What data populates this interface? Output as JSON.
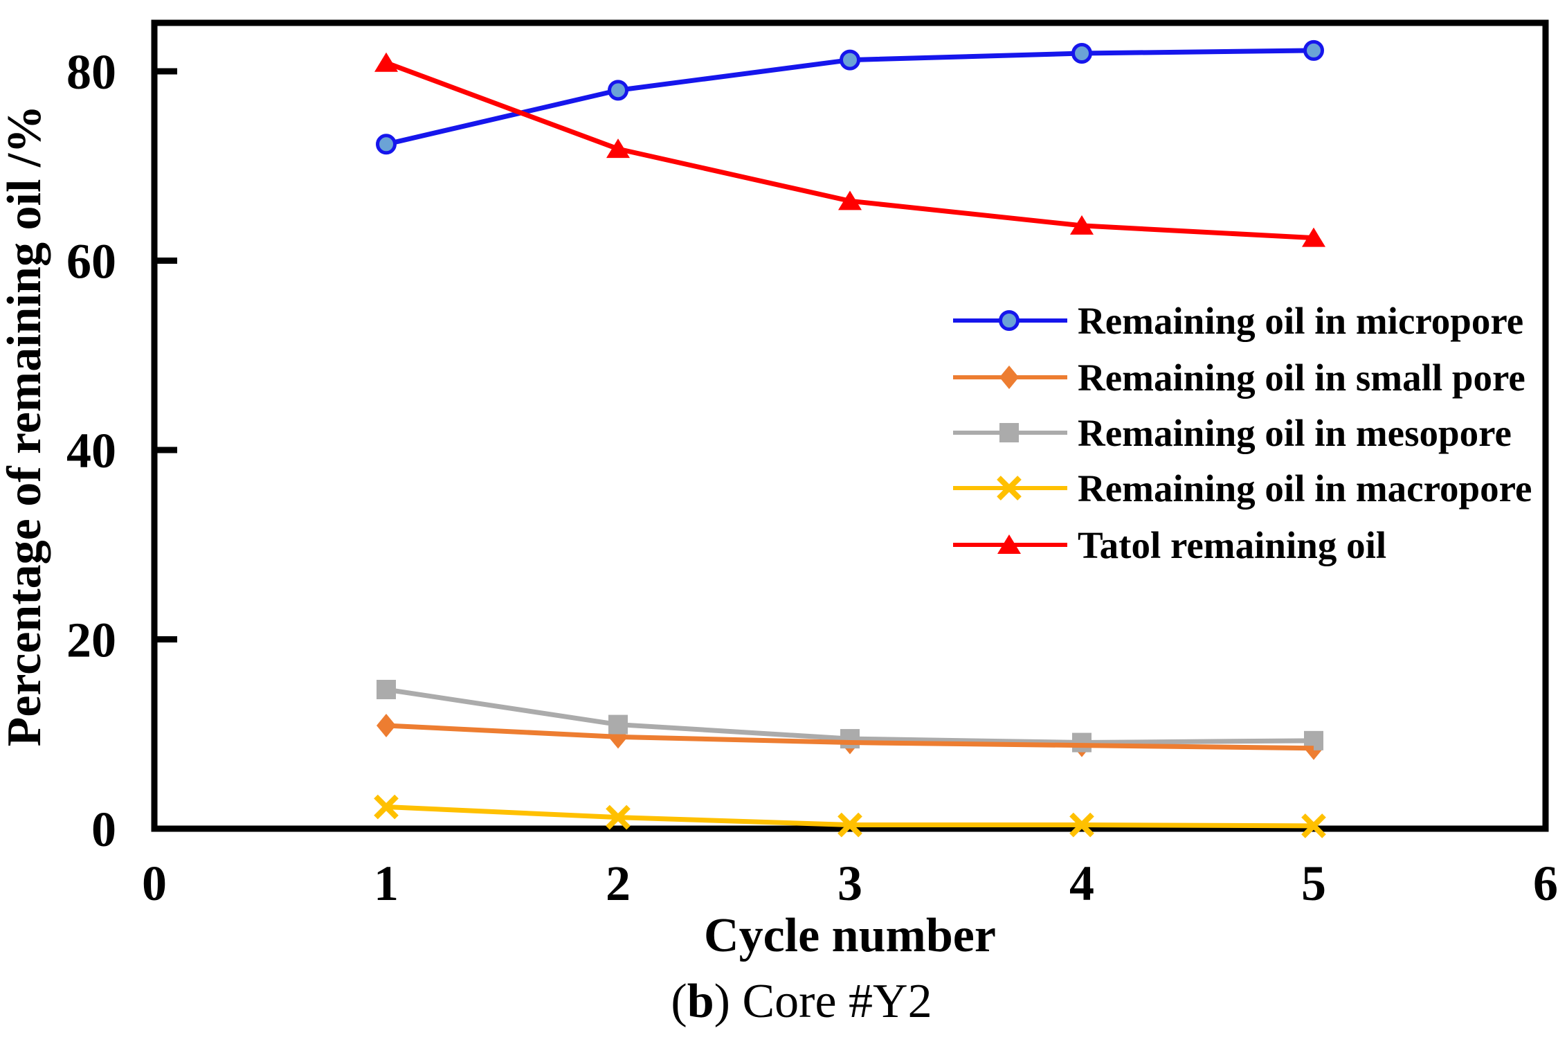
{
  "figure": {
    "y_axis_title": "Percentage of remaining oil /%",
    "x_axis_title": "Cycle number",
    "caption_open": "(",
    "caption_letter": "b",
    "caption_rest": ") Core #Y2"
  },
  "chart_data": {
    "type": "line",
    "title": "",
    "xlabel": "Cycle number",
    "ylabel": "Percentage of remaining oil /%",
    "x": [
      1,
      2,
      3,
      4,
      5
    ],
    "series": [
      {
        "name": "Remaining oil in micropore",
        "marker": "circle",
        "color": "#1616EC",
        "marker_fill": "#6BA3D6",
        "values": [
          72.3,
          78.0,
          81.2,
          81.9,
          82.2
        ]
      },
      {
        "name": "Remaining oil in small pore",
        "marker": "diamond",
        "color": "#ED7D31",
        "marker_fill": "#ED7D31",
        "values": [
          10.9,
          9.7,
          9.1,
          8.8,
          8.5
        ]
      },
      {
        "name": "Remaining oil in mesopore",
        "marker": "square",
        "color": "#ABABAB",
        "marker_fill": "#ABABAB",
        "values": [
          14.7,
          11.0,
          9.5,
          9.1,
          9.3
        ]
      },
      {
        "name": "Remaining oil in macropore",
        "marker": "x",
        "color": "#FFC000",
        "marker_fill": "#FFC000",
        "values": [
          2.3,
          1.2,
          0.4,
          0.4,
          0.3
        ]
      },
      {
        "name": "Tatol remaining oil",
        "marker": "triangle",
        "color": "#FF0000",
        "marker_fill": "#FF0000",
        "values": [
          80.9,
          71.8,
          66.3,
          63.7,
          62.4
        ]
      }
    ],
    "xlim": [
      0,
      6
    ],
    "ylim": [
      0,
      85
    ],
    "x_ticks": [
      0,
      1,
      2,
      3,
      4,
      5,
      6
    ],
    "y_ticks": [
      0,
      20,
      40,
      60,
      80
    ],
    "grid": false,
    "legend_position": "inside-center-right",
    "axis_color": "#000000"
  }
}
